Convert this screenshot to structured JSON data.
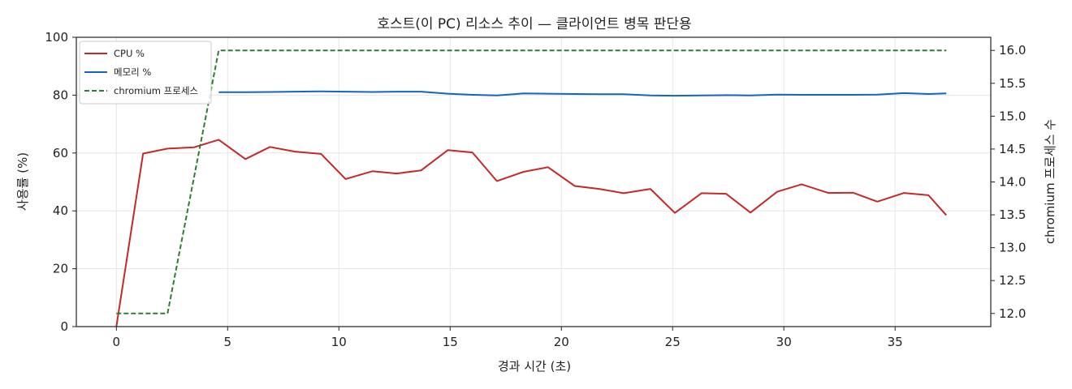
{
  "chart_data": {
    "type": "line",
    "title": "호스트(이 PC) 리소스 추이 — 클라이언트 병목 판단용",
    "xlabel": "경과 시간 (초)",
    "ylabel": "사용률 (%)",
    "y2label": "chromium 프로세스 수",
    "xlim": [
      -1.8,
      39.3
    ],
    "ylim": [
      0,
      100
    ],
    "y2lim": [
      11.8,
      16.2
    ],
    "xticks": [
      0,
      5,
      10,
      15,
      20,
      25,
      30,
      35
    ],
    "yticks": [
      0,
      20,
      40,
      60,
      80,
      100
    ],
    "y2ticks": [
      "12.0",
      "12.5",
      "13.0",
      "13.5",
      "14.0",
      "14.5",
      "15.0",
      "15.5",
      "16.0"
    ],
    "grid": true,
    "legend_position": "top-left",
    "series": [
      {
        "name": "CPU %",
        "axis": "left",
        "color": "#c62828",
        "style": "solid",
        "x": [
          0,
          1.2,
          2.3,
          3.5,
          4.6,
          5.8,
          6.9,
          8.0,
          9.2,
          10.3,
          11.5,
          12.6,
          13.7,
          14.9,
          16.0,
          17.1,
          18.3,
          19.4,
          20.6,
          21.7,
          22.8,
          24.0,
          25.1,
          26.3,
          27.4,
          28.5,
          29.7,
          30.8,
          32.0,
          33.1,
          34.2,
          35.4,
          36.5,
          37.3
        ],
        "y": [
          0,
          59.8,
          61.5,
          62.0,
          64.6,
          57.9,
          62.1,
          60.5,
          59.7,
          51.0,
          53.7,
          52.9,
          54.0,
          61.0,
          60.2,
          50.3,
          53.5,
          55.1,
          48.6,
          47.6,
          46.1,
          47.6,
          39.3,
          46.1,
          45.9,
          39.4,
          46.6,
          49.2,
          46.2,
          46.3,
          43.2,
          46.2,
          45.4,
          38.5
        ]
      },
      {
        "name": "메모리 %",
        "axis": "left",
        "color": "#1565c0",
        "style": "solid",
        "x": [
          4.6,
          5.8,
          6.9,
          8.0,
          9.2,
          10.3,
          11.5,
          12.6,
          13.7,
          14.9,
          16.0,
          17.1,
          18.3,
          19.4,
          20.6,
          21.7,
          22.8,
          24.0,
          25.1,
          26.3,
          27.4,
          28.5,
          29.7,
          30.8,
          32.0,
          33.1,
          34.2,
          35.4,
          36.5,
          37.3
        ],
        "y": [
          81.0,
          81.0,
          81.1,
          81.2,
          81.3,
          81.2,
          81.1,
          81.2,
          81.2,
          80.5,
          80.1,
          79.9,
          80.6,
          80.5,
          80.4,
          80.3,
          80.3,
          79.9,
          79.8,
          79.9,
          80.0,
          79.9,
          80.2,
          80.1,
          80.1,
          80.1,
          80.2,
          80.7,
          80.4,
          80.6
        ]
      },
      {
        "name": "chromium 프로세스",
        "axis": "right",
        "color": "#2e7d32",
        "style": "dashed",
        "x": [
          0,
          1.2,
          2.3,
          4.6,
          37.3
        ],
        "y": [
          12,
          12,
          12,
          16,
          16
        ]
      }
    ]
  }
}
